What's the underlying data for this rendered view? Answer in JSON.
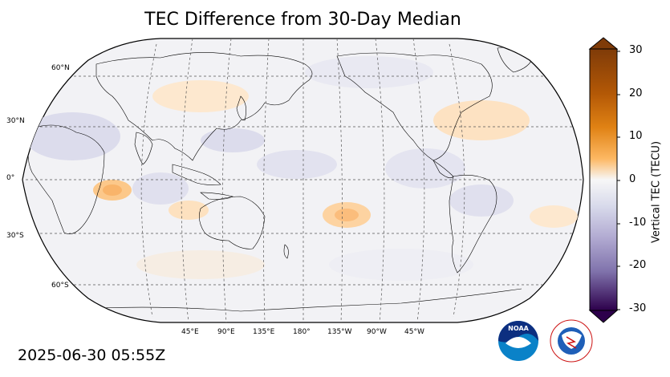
{
  "title": "TEC Difference from 30-Day Median",
  "timestamp": "2025-06-30 05:55Z",
  "map": {
    "projection": "Robinson",
    "central_longitude": "180°",
    "lat_labels": [
      "60°N",
      "30°N",
      "0°",
      "30°S",
      "60°S"
    ],
    "lon_labels": [
      "45°E",
      "90°E",
      "135°E",
      "180°",
      "135°W",
      "90°W",
      "45°W"
    ]
  },
  "colorbar": {
    "label": "Vertical TEC (TECU)",
    "ticks": [
      "30",
      "20",
      "10",
      "0",
      "-10",
      "-20",
      "-30"
    ],
    "min": -30,
    "max": 30,
    "colors": {
      "high": "#7f3b08",
      "mid_high": "#e08214",
      "light_high": "#fdb863",
      "neutral": "#f7f7f7",
      "light_low": "#b2abd2",
      "mid_low": "#8073ac",
      "low": "#2d004b"
    }
  },
  "logos": {
    "noaa": "NOAA",
    "nws": "NATIONAL WEATHER SERVICE"
  }
}
